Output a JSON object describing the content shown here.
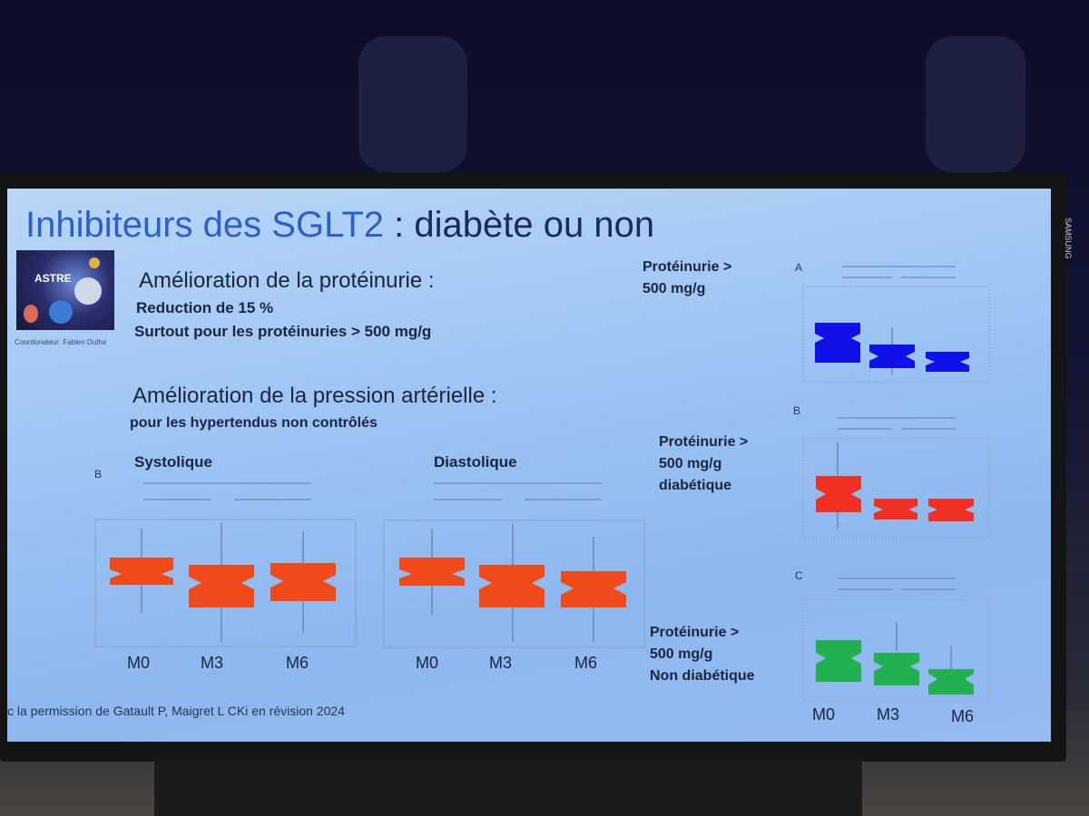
{
  "slide": {
    "title_part1": "Inhibiteurs des SGLT2",
    "title_part2": " : diabète ou non",
    "logo_text": "ASTRE",
    "coordinator": "Coordonateur: Fabien Duthe",
    "section1_heading": "Amélioration de la protéinurie :",
    "section1_line1": "Reduction de 15  %",
    "section1_line2": "Surtout pour les protéinuries > 500 mg/g",
    "section2_heading": "Amélioration de la pression artérielle :",
    "section2_line1": "pour les hypertendus non contrôlés",
    "panel_b_label": "B",
    "systolique_label": "Systolique",
    "diastolique_label": "Diastolique",
    "x_labels": [
      "M0",
      "M3",
      "M6"
    ],
    "right_label_a": "Protéinurie >\n500 mg/g",
    "right_label_b": "Protéinurie >\n500 mg/g\ndiabétique",
    "right_label_c": "Protéinurie >\n500 mg/g\nNon diabétique",
    "right_panel_a": "A",
    "right_panel_b": "B",
    "right_panel_c": "C",
    "footer": "c la permission de  Gatault P,  Maigret L CKi en  révision  2024"
  },
  "colors": {
    "orange_box": "#f04a1a",
    "blue_box": "#1010e8",
    "red_box": "#f03020",
    "green_box": "#22b050",
    "title_blue": "#2a60c8"
  },
  "tv": {
    "brand": "SAMSUNG"
  }
}
